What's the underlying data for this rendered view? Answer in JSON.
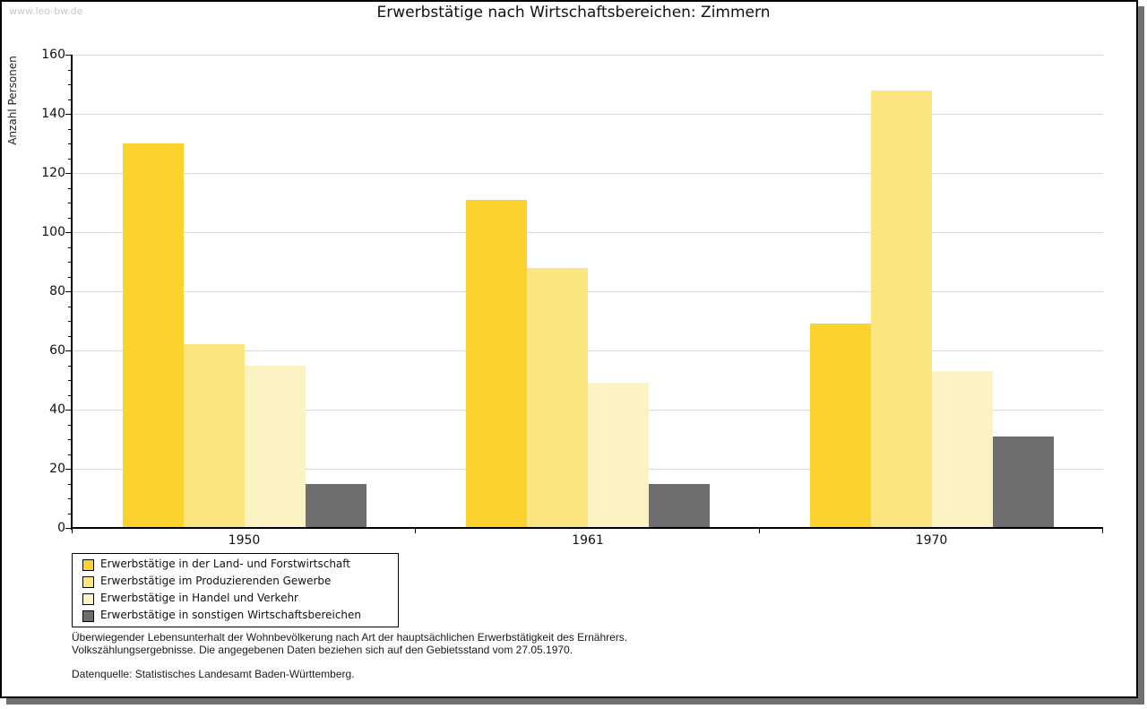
{
  "watermark": "www.leo-bw.de",
  "title": "Erwerbstätige nach Wirtschaftsbereichen: Zimmern",
  "chart_data": {
    "type": "bar",
    "title": "Erwerbstätige nach Wirtschaftsbereichen: Zimmern",
    "xlabel": "",
    "ylabel": "Anzahl Personen",
    "categories": [
      "1950",
      "1961",
      "1970"
    ],
    "series": [
      {
        "name": "Erwerbstätige in der Land- und Forstwirtschaft",
        "color": "#fcd32e",
        "values": [
          130,
          111,
          69
        ]
      },
      {
        "name": "Erwerbstätige im Produzierenden Gewerbe",
        "color": "#fbe57e",
        "values": [
          62,
          88,
          148
        ]
      },
      {
        "name": "Erwerbstätige in Handel und Verkehr",
        "color": "#faf2c3",
        "values": [
          55,
          49,
          53
        ]
      },
      {
        "name": "Erwerbstätige in sonstigen Wirtschaftsbereichen",
        "color": "#6e6e6e",
        "values": [
          15,
          15,
          31
        ]
      }
    ],
    "ylim": [
      0,
      160
    ],
    "ytick_step": 20,
    "yminor_step": 5,
    "grid": true,
    "legend_position": "bottom-left"
  },
  "footnotes": {
    "line1": "Überwiegender Lebensunterhalt der Wohnbevölkerung nach Art der hauptsächlichen Erwerbstätigkeit des Ernährers.",
    "line2": "Volkszählungsergebnisse. Die angegebenen Daten beziehen sich auf den Gebietsstand vom 27.05.1970.",
    "source": "Datenquelle: Statistisches Landesamt Baden-Württemberg."
  },
  "colors": {
    "grid": "#dadada",
    "axis": "#000000",
    "shadow": "#6f6f6f",
    "watermark": "#c9c9c9"
  }
}
